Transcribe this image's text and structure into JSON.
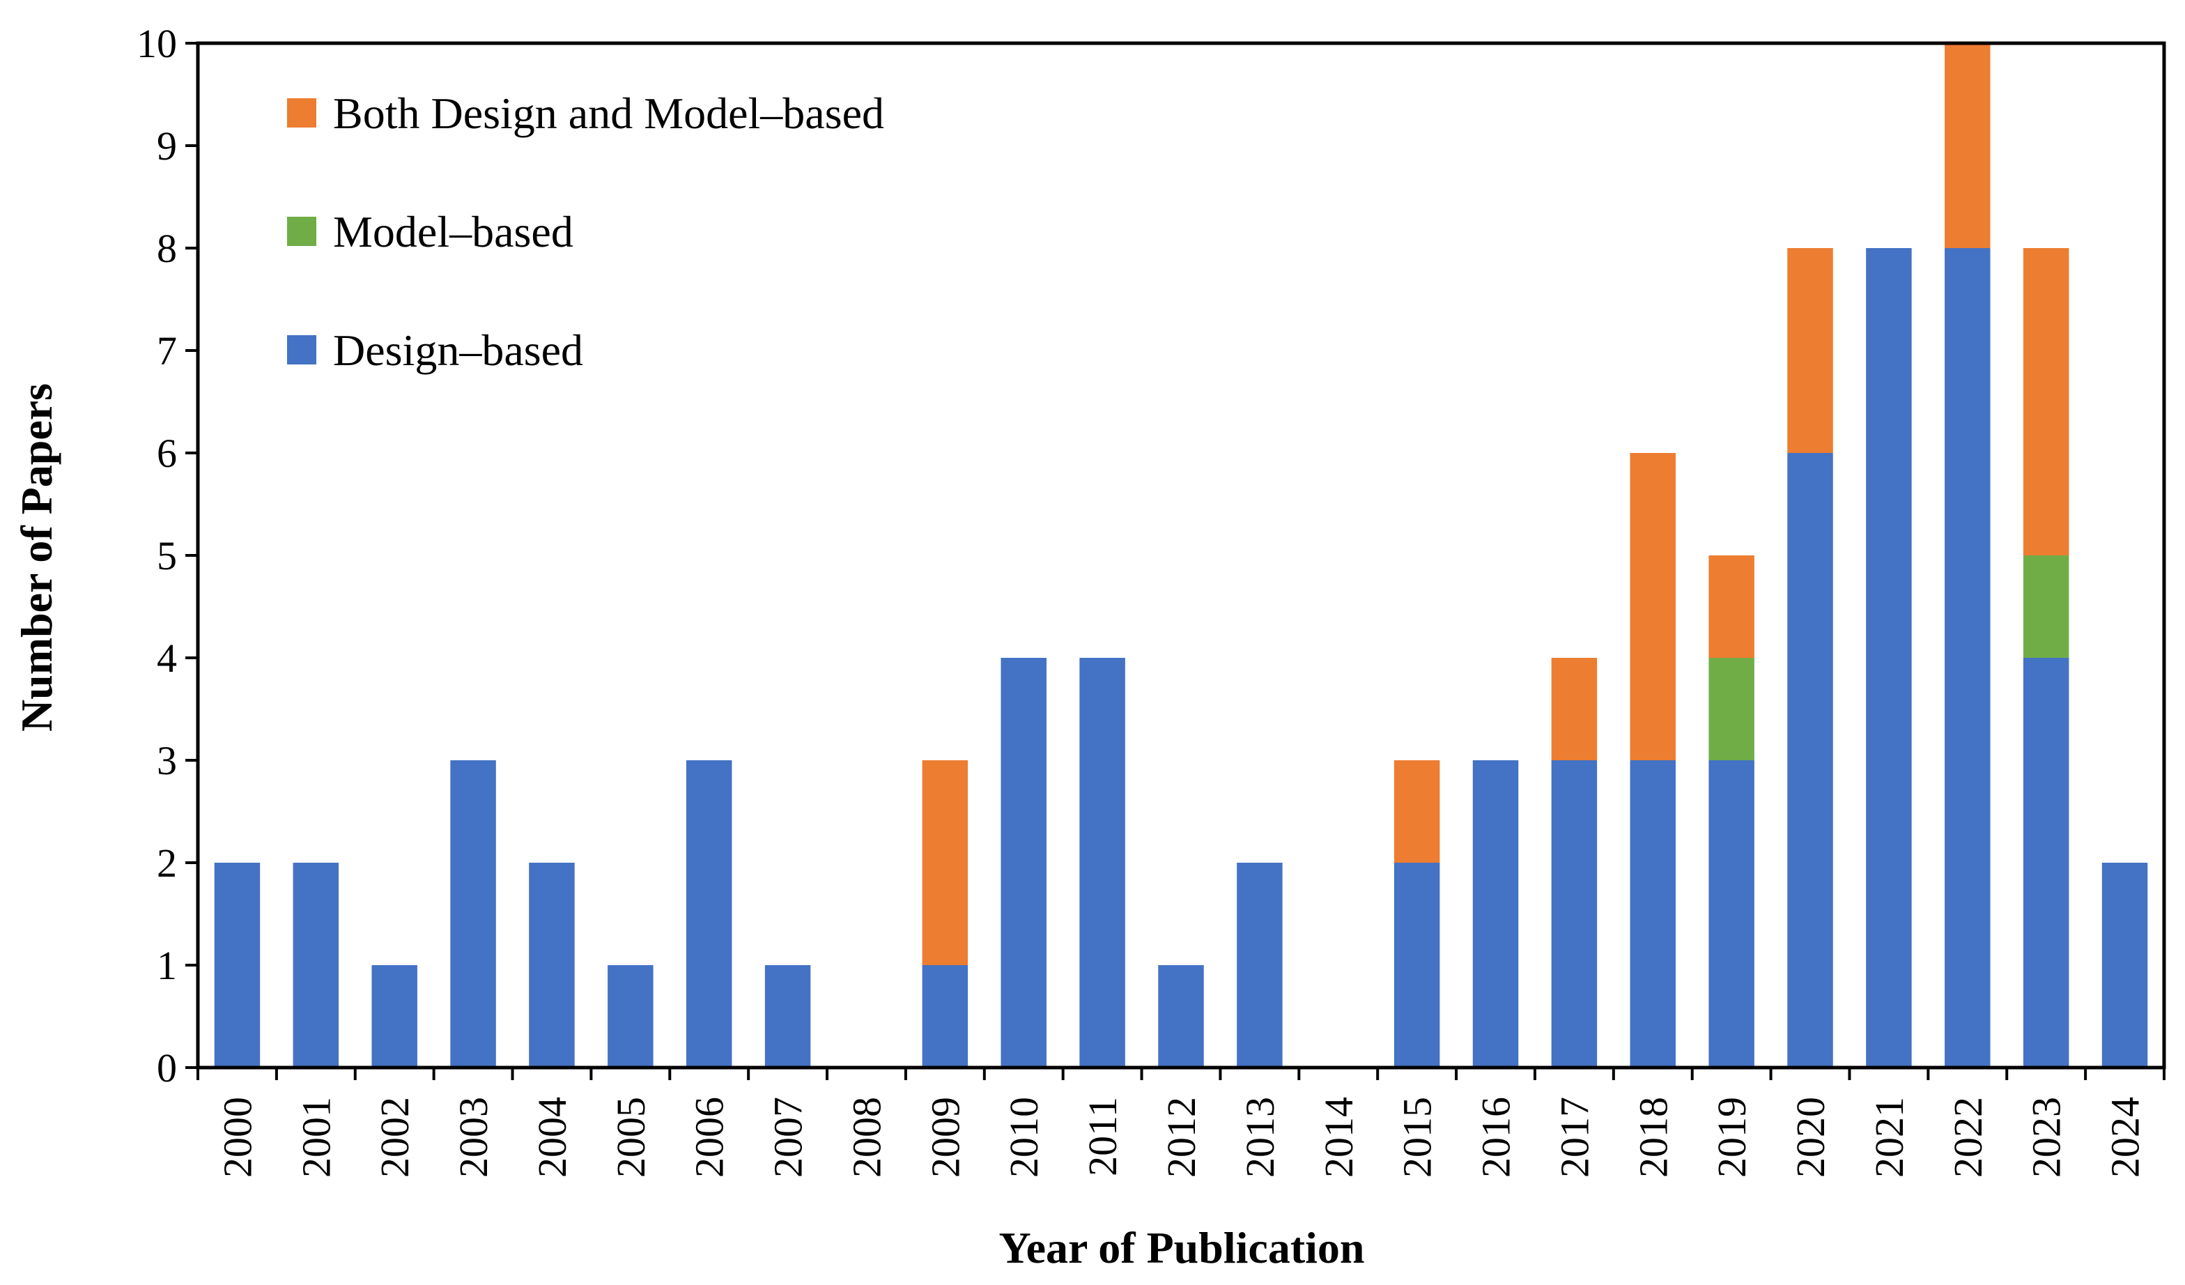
{
  "chart_data": {
    "type": "bar",
    "stacked": true,
    "title": "",
    "xlabel": "Year of Publication",
    "ylabel": "Number of Papers",
    "ylim": [
      0,
      10
    ],
    "yticks": [
      "0",
      "1",
      "2",
      "3",
      "4",
      "5",
      "6",
      "7",
      "8",
      "9",
      "10"
    ],
    "categories": [
      "2000",
      "2001",
      "2002",
      "2003",
      "2004",
      "2005",
      "2006",
      "2007",
      "2008",
      "2009",
      "2010",
      "2011",
      "2012",
      "2013",
      "2014",
      "2015",
      "2016",
      "2017",
      "2018",
      "2019",
      "2020",
      "2021",
      "2022",
      "2023",
      "2024"
    ],
    "series": [
      {
        "name": "Design–based",
        "color": "#4472C4",
        "values": [
          2,
          2,
          1,
          3,
          2,
          1,
          3,
          1,
          0,
          1,
          4,
          4,
          1,
          2,
          0,
          2,
          3,
          3,
          3,
          3,
          6,
          8,
          8,
          4,
          2
        ]
      },
      {
        "name": "Model–based",
        "color": "#70AD47",
        "values": [
          0,
          0,
          0,
          0,
          0,
          0,
          0,
          0,
          0,
          0,
          0,
          0,
          0,
          0,
          0,
          0,
          0,
          0,
          0,
          1,
          0,
          0,
          0,
          1,
          0
        ]
      },
      {
        "name": "Both Design and Model–based",
        "color": "#ED7D31",
        "values": [
          0,
          0,
          0,
          0,
          0,
          0,
          0,
          0,
          0,
          2,
          0,
          0,
          0,
          0,
          0,
          1,
          0,
          1,
          3,
          1,
          2,
          0,
          2,
          3,
          0
        ]
      }
    ],
    "legend": {
      "position": "top-left-inside",
      "entries": [
        "Both Design and Model–based",
        "Model–based",
        "Design–based"
      ]
    },
    "grid": false
  }
}
